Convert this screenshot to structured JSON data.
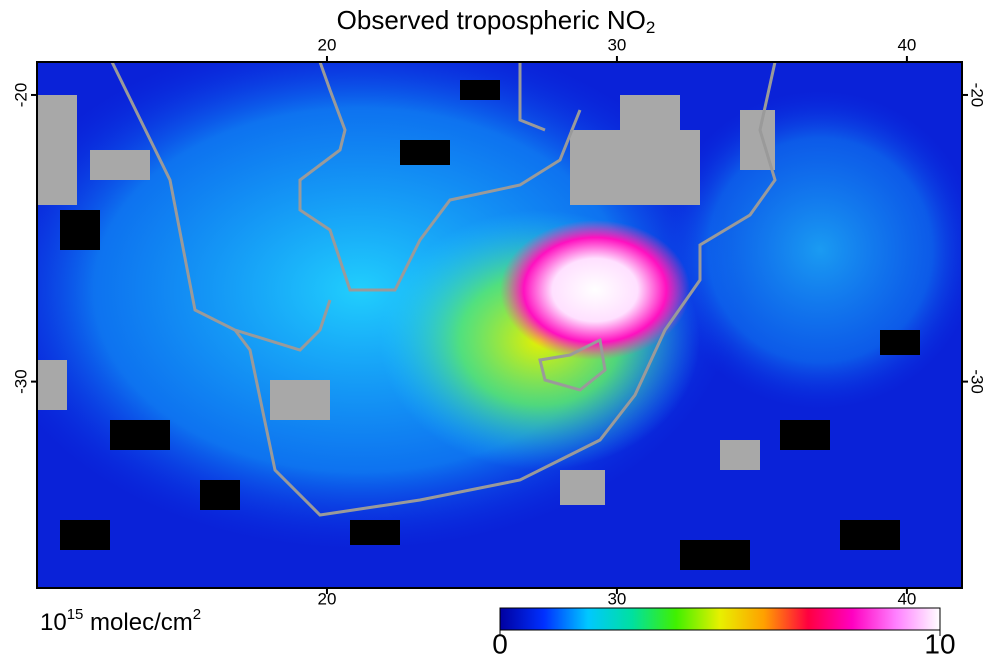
{
  "title": {
    "main": "Observed tropospheric NO",
    "subscript": "2"
  },
  "map": {
    "xlim": [
      10,
      41.9
    ],
    "ylim": [
      -37.2,
      -18.85
    ],
    "xticks": [
      20,
      30,
      40
    ],
    "yticks": [
      -20,
      -30
    ]
  },
  "colorbar": {
    "lim": [
      0,
      10
    ],
    "ticks": [
      0,
      10
    ],
    "colors": [
      "#0000a0",
      "#0030ff",
      "#00c8ff",
      "#00e0a0",
      "#40f000",
      "#e8f000",
      "#ffa000",
      "#ff0040",
      "#ff00c0",
      "#ff80ff",
      "#ffffff"
    ]
  },
  "units": {
    "base": "10",
    "exponent": "15",
    "unit": " molec/cm",
    "unit_exponent": "2"
  }
}
